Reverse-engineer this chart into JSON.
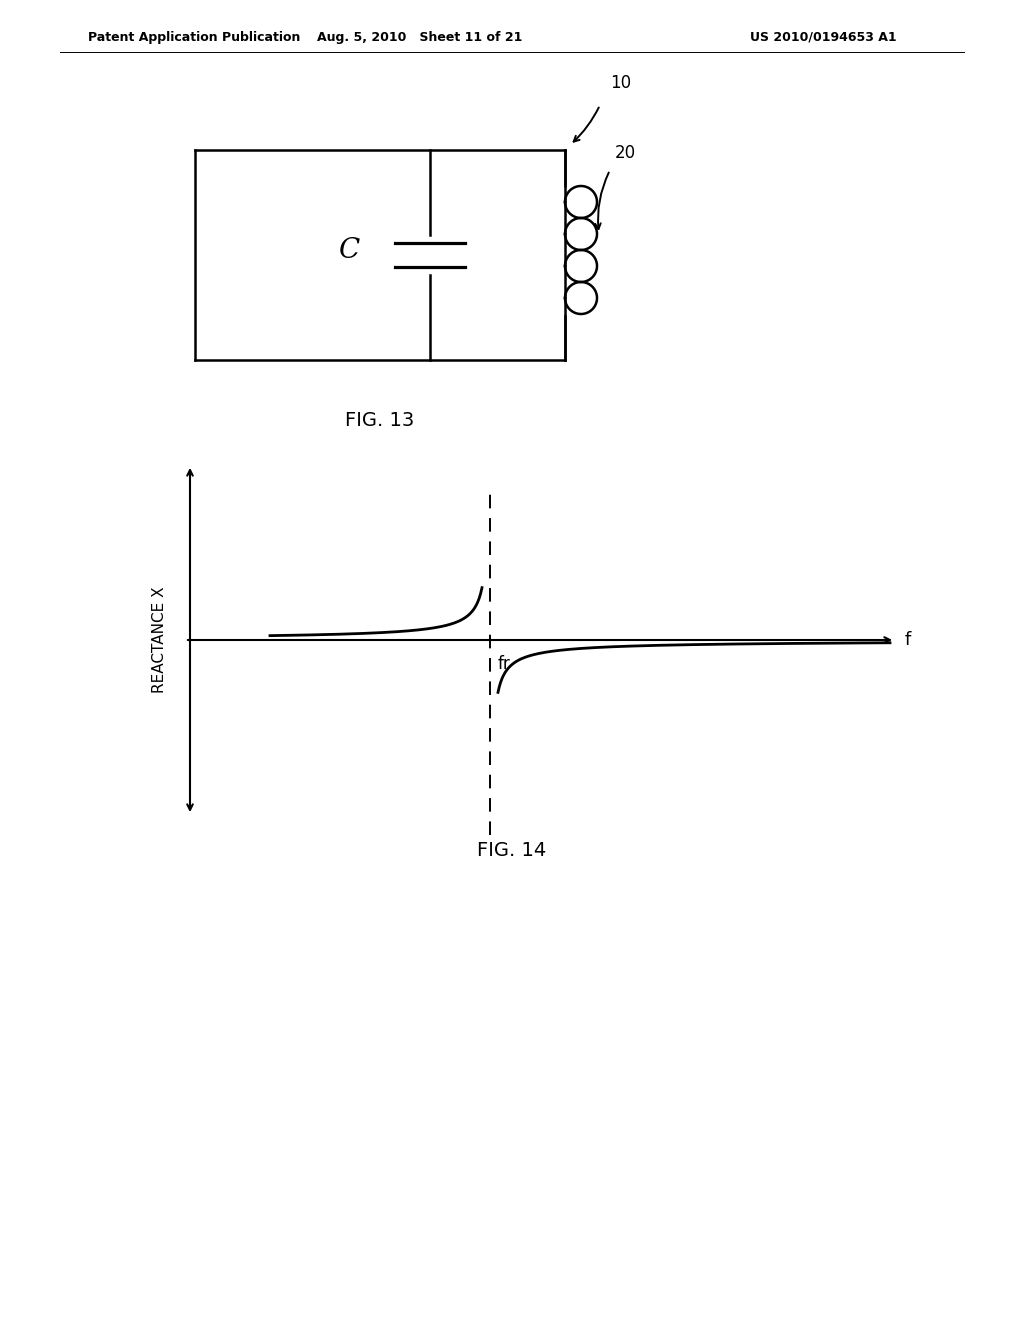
{
  "background_color": "#ffffff",
  "header_left": "Patent Application Publication",
  "header_center": "Aug. 5, 2010   Sheet 11 of 21",
  "header_right": "US 2010/0194653 A1",
  "fig13_label": "FIG. 13",
  "fig14_label": "FIG. 14",
  "label_10": "10",
  "label_20": "20",
  "label_C": "C",
  "label_fr": "fr",
  "label_f": "f",
  "label_reactance": "REACTANCE X",
  "lw": 1.8
}
